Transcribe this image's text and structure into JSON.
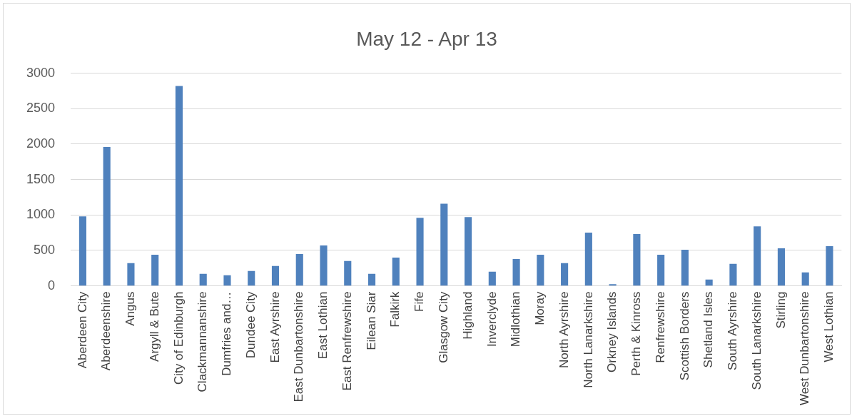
{
  "chart_data": {
    "type": "bar",
    "title": "May 12 - Apr 13",
    "categories": [
      "Aberdeen City",
      "Aberdeenshire",
      "Angus",
      "Argyll & Bute",
      "City of Edinburgh",
      "Clackmannanshire",
      "Dumfries and…",
      "Dundee City",
      "East Ayrshire",
      "East Dunbartonshire",
      "East Lothian",
      "East Renfrewshire",
      "Eilean Siar",
      "Falkirk",
      "Fife",
      "Glasgow City",
      "Highland",
      "Inverclyde",
      "Midlothian",
      "Moray",
      "North Ayrshire",
      "North Lanarkshire",
      "Orkney Islands",
      "Perth & Kinross",
      "Renfrewshire",
      "Scottish Borders",
      "Shetland Isles",
      "South Ayrshire",
      "South Lanarkshire",
      "Stirling",
      "West Dunbartonshire",
      "West Lothian"
    ],
    "values": [
      980,
      1960,
      320,
      440,
      2820,
      170,
      150,
      210,
      280,
      450,
      570,
      350,
      170,
      400,
      960,
      1160,
      970,
      200,
      380,
      440,
      320,
      750,
      25,
      730,
      440,
      510,
      90,
      310,
      840,
      530,
      190,
      560
    ],
    "color": "#4f81bd",
    "ylim": [
      0,
      3000
    ],
    "yticks": [
      0,
      500,
      1000,
      1500,
      2000,
      2500,
      3000
    ],
    "grid": "y",
    "legend": false
  }
}
